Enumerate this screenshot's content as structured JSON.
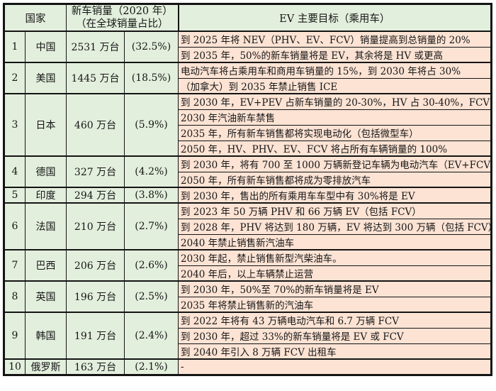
{
  "header": {
    "col_country": "国家",
    "col_sales_line1": "新车销量（2020 年）",
    "col_sales_line2": "（在全球销量占比）",
    "col_ev": "EV 主要目标（乘用车）"
  },
  "colors": {
    "left_cells_green": "#e3efdd",
    "target_cells_pink": "#fce3d4",
    "border_black": "#141414"
  },
  "rows": [
    {
      "no": "1",
      "country": "中国",
      "sales": "2531 万台",
      "share": "(32.5%)",
      "targets": [
        "到 2025 年将 NEV（PHV、EV、FCV）销量提高到总销量的 20%",
        "到 2035 年，50%的新车销量将是 EV，其余将是 HV 或更高"
      ]
    },
    {
      "no": "2",
      "country": "美国",
      "sales": "1445 万台",
      "share": "(18.5%)",
      "targets": [
        "电动汽车将占乘用车和商用车销量的 15%，到 2030 年将占 30%",
        "（加拿大）到 2035 年禁止销售 ICE"
      ]
    },
    {
      "no": "3",
      "country": "日本",
      "sales": "460 万台",
      "share": "(5.9%)",
      "targets": [
        "到 2030 年，EV+PEV 占新车销量的 20-30%，HV 占 30-40%，FCV 占 3%",
        "2030 年汽油新车禁售",
        "2035 年，所有新车销售都将实现电动化（包括微型车）",
        "2050 年，HV、PHV、EV、FCV 将占所有车辆销量的 100%"
      ]
    },
    {
      "no": "4",
      "country": "德国",
      "sales": "327 万台",
      "share": "(4.2%)",
      "targets": [
        "到 2030 年，将有 700 至 1000 万辆新登记车辆为电动汽车（EV+FCV）",
        "2050 年，所有新车销售都将成为零排放汽车"
      ]
    },
    {
      "no": "5",
      "country": "印度",
      "sales": "294 万台",
      "share": "(3.8%)",
      "targets": [
        "到 2030 年，售出的所有乘用车车型中有 30%将是 EV"
      ]
    },
    {
      "no": "6",
      "country": "法国",
      "sales": "210 万台",
      "share": "(2.7%)",
      "targets": [
        "到 2023 年 50 万辆 PHV 和 66 万辆 EV（包括 FCV）",
        "到 2028 年，PHV 将达到 180 万辆，EV 将达到 300 万辆（包括 FCV）",
        "2040 年禁止销售新汽油车"
      ]
    },
    {
      "no": "7",
      "country": "巴西",
      "sales": "206 万台",
      "share": "(2.6%)",
      "targets": [
        "2030 年起，禁止销售新型汽柴油车。",
        "2040 年后，以上车辆禁止运营"
      ]
    },
    {
      "no": "8",
      "country": "英国",
      "sales": "196 万台",
      "share": "(2.5%)",
      "targets": [
        "到 2030 年，50%至 70%的新车销量将是 EV",
        "2035 年将禁止销售新的汽油车"
      ]
    },
    {
      "no": "9",
      "country": "韩国",
      "sales": "191 万台",
      "share": "(2.4%)",
      "targets": [
        "到 2022 年将有 43 万辆电动汽车和 6.7 万辆 FCV",
        "到 2030 年，超过 33%的新车销量将是 EV 或 FCV",
        "到 2040 年引入 8 万辆 FCV 出租车"
      ]
    },
    {
      "no": "10",
      "country": "俄罗斯",
      "sales": "163 万台",
      "share": "(2.1%)",
      "targets": [
        "-"
      ]
    }
  ]
}
